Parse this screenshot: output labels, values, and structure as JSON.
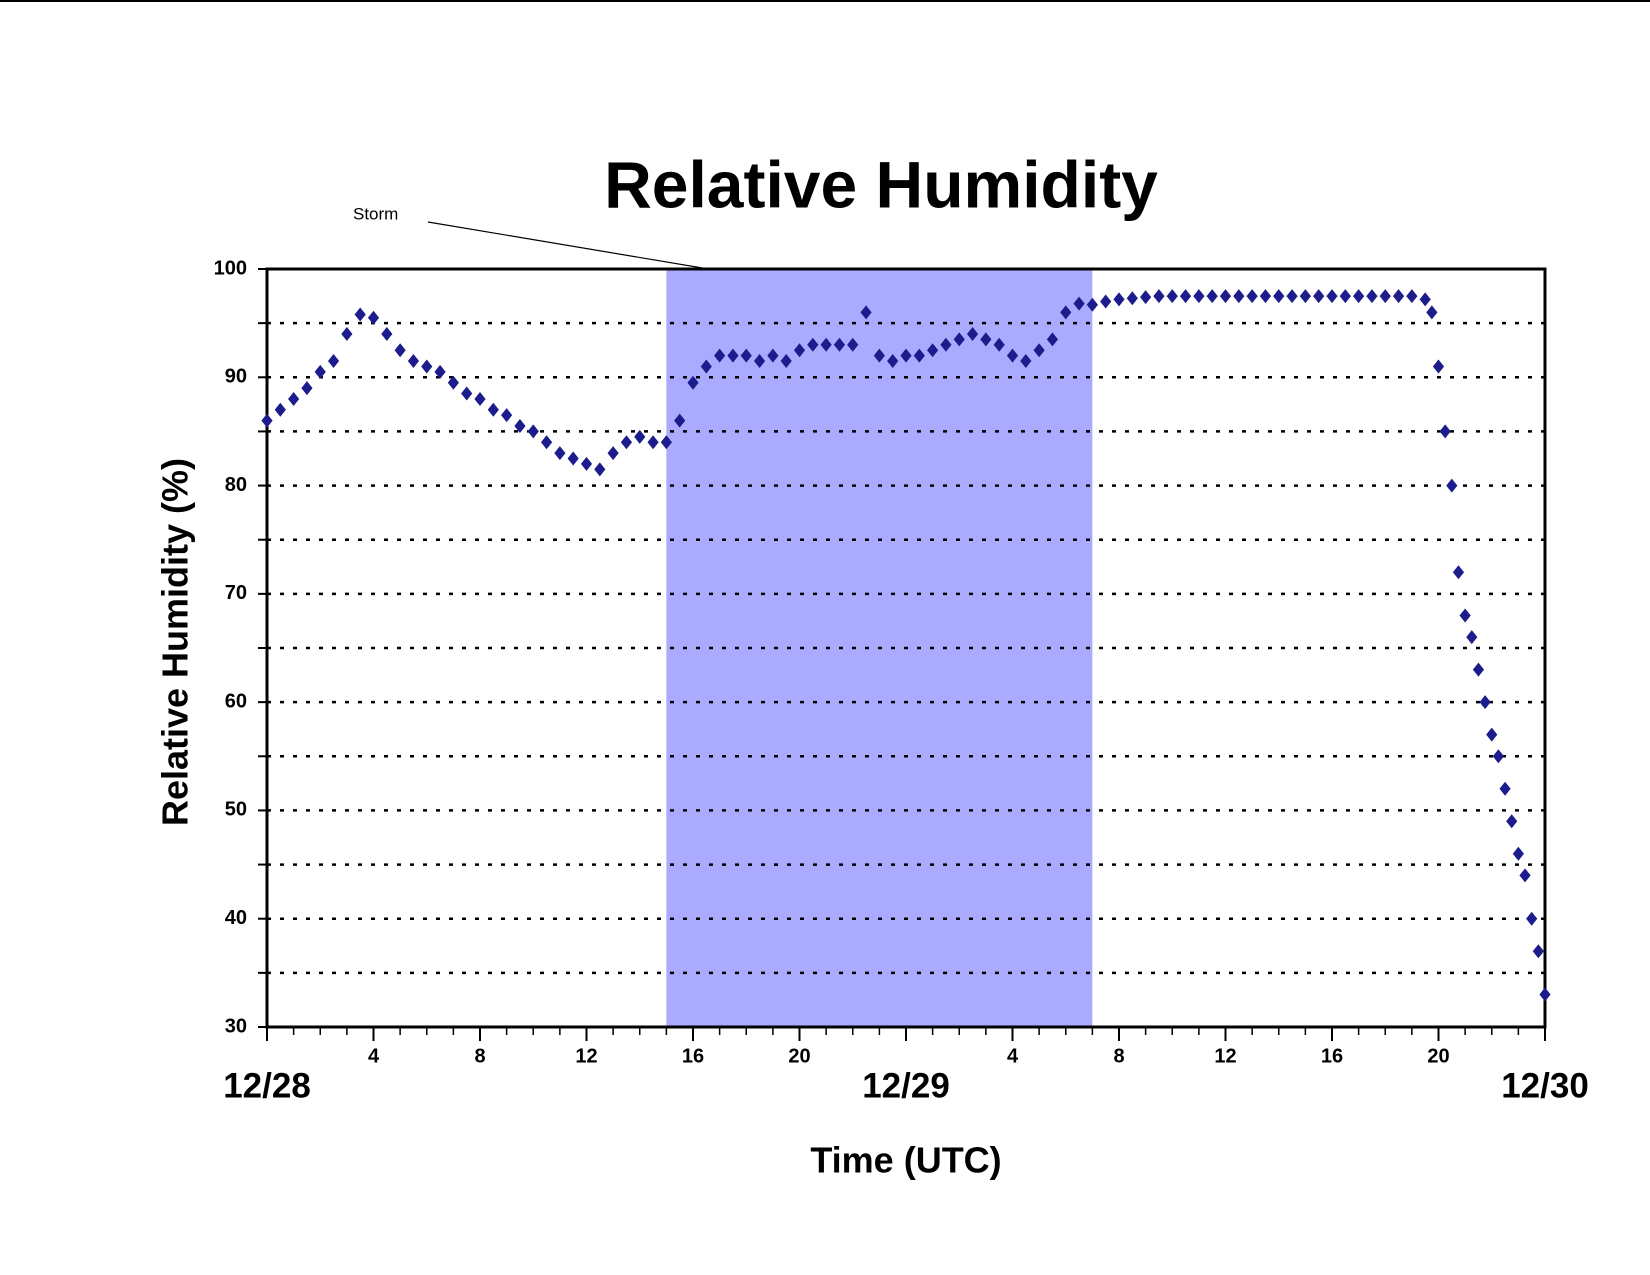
{
  "chart_data": {
    "type": "scatter",
    "title": "Relative Humidity",
    "x_label": "Time (UTC)",
    "y_label": "Relative Humidity (%)",
    "marker": "diamond",
    "color": "#1c1c8c",
    "grid": true,
    "xlim": [
      0,
      48
    ],
    "ylim": [
      30,
      100
    ],
    "xticks": [
      {
        "value": 0,
        "label": "12/28"
      },
      4,
      8,
      12,
      16,
      20,
      {
        "value": 24,
        "label": "12/29"
      },
      {
        "value": 28,
        "label": "4"
      },
      {
        "value": 32,
        "label": "8"
      },
      {
        "value": 36,
        "label": "12"
      },
      {
        "value": 40,
        "label": "16"
      },
      {
        "value": 44,
        "label": "20"
      },
      {
        "value": 48,
        "label": "12/30"
      }
    ],
    "xminorticks": [
      0,
      1,
      2,
      3,
      4,
      5,
      6,
      7,
      8,
      9,
      10,
      11,
      12,
      13,
      14,
      15,
      16,
      17,
      18,
      19,
      20,
      21,
      22,
      23,
      24,
      25,
      26,
      27,
      28,
      29,
      30,
      31,
      32,
      33,
      34,
      35,
      36,
      37,
      38,
      39,
      40,
      41,
      42,
      43,
      44,
      45,
      46,
      47,
      48
    ],
    "yticks": [
      30,
      40,
      50,
      60,
      70,
      80,
      90,
      100
    ],
    "yminorticks": [
      35,
      45,
      55,
      65,
      75,
      85,
      95
    ],
    "storm": {
      "label": "Storm",
      "x0": 15,
      "x1": 31,
      "color": "#aaaaff"
    },
    "x": [
      0,
      0.5,
      1,
      1.5,
      2,
      2.5,
      3,
      3.5,
      4,
      4.5,
      5,
      5.5,
      6,
      6.5,
      7,
      7.5,
      8,
      8.5,
      9,
      9.5,
      10,
      10.5,
      11,
      11.5,
      12,
      12.5,
      13,
      13.5,
      14,
      14.5,
      15,
      15.5,
      16,
      16.5,
      17,
      17.5,
      18,
      18.5,
      19,
      19.5,
      20,
      20.5,
      21,
      21.5,
      22,
      22.5,
      23,
      23.5,
      24,
      24.5,
      25,
      25.5,
      26,
      26.5,
      27,
      27.5,
      28,
      28.5,
      29,
      29.5,
      30,
      30.5,
      31,
      31.5,
      32,
      32.5,
      33,
      33.5,
      34,
      34.5,
      35,
      35.5,
      36,
      36.5,
      37,
      37.5,
      38,
      38.5,
      39,
      39.5,
      40,
      40.5,
      41,
      41.5,
      42,
      42.5,
      43,
      43.5,
      43.75,
      44,
      44.25,
      44.5,
      44.75,
      45,
      45.25,
      45.5,
      45.75,
      46,
      46.25,
      46.5,
      46.75,
      47,
      47.25,
      47.5,
      47.75,
      48
    ],
    "values": [
      86,
      87,
      88,
      89,
      90.5,
      91.5,
      94,
      95.8,
      95.5,
      94,
      92.5,
      91.5,
      91,
      90.5,
      89.5,
      88.5,
      88,
      87,
      86.5,
      85.5,
      85,
      84,
      83,
      82.5,
      82,
      81.5,
      83,
      84,
      84.5,
      84,
      84,
      86,
      89.5,
      91,
      92,
      92,
      92,
      91.5,
      92,
      91.5,
      92.5,
      93,
      93,
      93,
      93,
      96,
      92,
      91.5,
      92,
      92,
      92.5,
      93,
      93.5,
      94,
      93.5,
      93,
      92,
      91.5,
      92.5,
      93.5,
      96,
      96.8,
      96.7,
      97,
      97.2,
      97.3,
      97.4,
      97.5,
      97.5,
      97.5,
      97.5,
      97.5,
      97.5,
      97.5,
      97.5,
      97.5,
      97.5,
      97.5,
      97.5,
      97.5,
      97.5,
      97.5,
      97.5,
      97.5,
      97.5,
      97.5,
      97.5,
      97.2,
      96,
      91,
      85,
      80,
      72,
      68,
      66,
      63,
      60,
      57,
      55,
      52,
      49,
      46,
      44,
      40,
      37,
      33
    ]
  }
}
